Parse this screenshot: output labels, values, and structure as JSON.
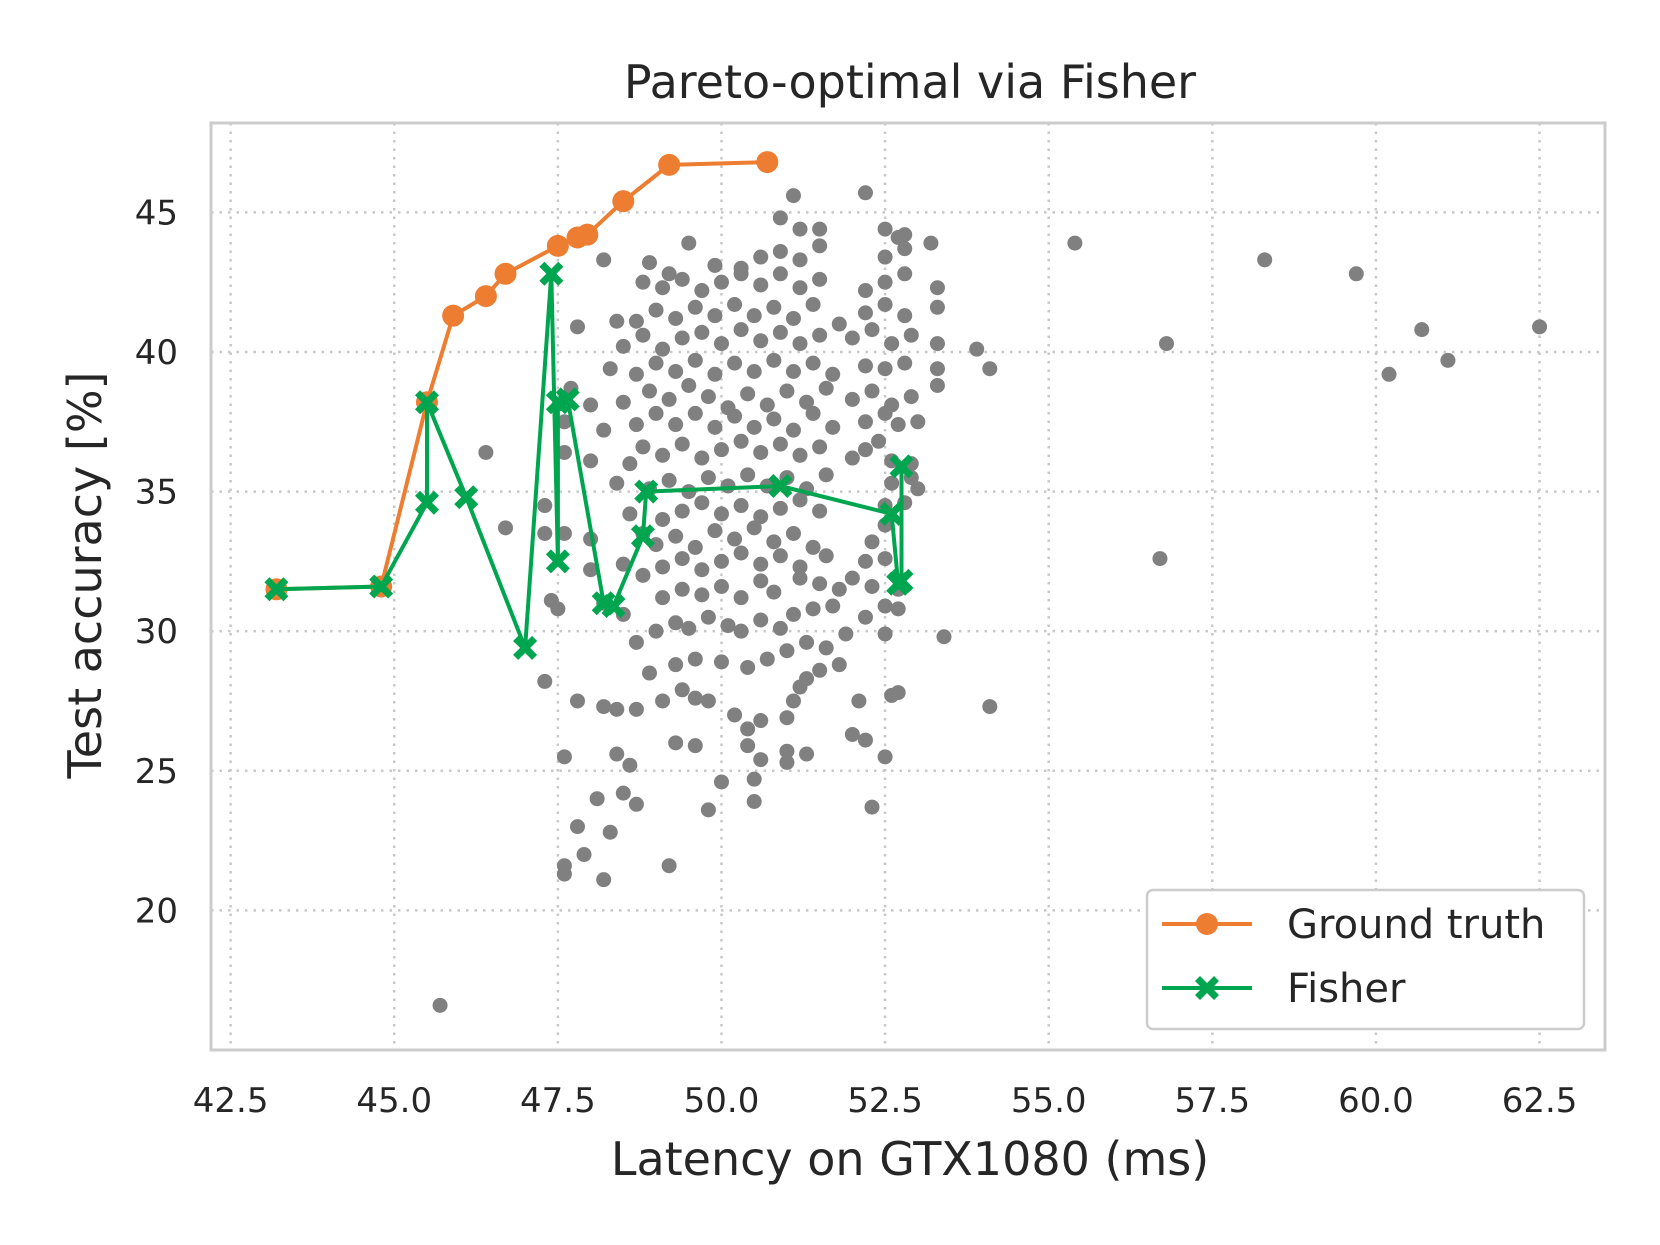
{
  "chart_data": {
    "type": "scatter",
    "title": "Pareto-optimal via Fisher",
    "xlabel": "Latency on GTX1080 (ms)",
    "ylabel": "Test accuracy [%]",
    "xlim": [
      42.2,
      63.5
    ],
    "ylim": [
      15.0,
      48.2
    ],
    "xticks": [
      42.5,
      45.0,
      47.5,
      50.0,
      52.5,
      55.0,
      57.5,
      60.0,
      62.5
    ],
    "xtick_labels": [
      "42.5",
      "45.0",
      "47.5",
      "50.0",
      "52.5",
      "55.0",
      "57.5",
      "60.0",
      "62.5"
    ],
    "yticks": [
      20,
      25,
      30,
      35,
      40,
      45
    ],
    "ytick_labels": [
      "20",
      "25",
      "30",
      "35",
      "40",
      "45"
    ],
    "grid": true,
    "legend_position": "lower-right",
    "colors": {
      "background_points": "#808080",
      "ground_truth": "#ED7D31",
      "fisher": "#00A64F",
      "grid": "#c8c8c8",
      "frame": "#cccccc"
    },
    "background_points": [
      [
        45.7,
        16.6
      ],
      [
        49.2,
        21.6
      ],
      [
        48.2,
        21.1
      ],
      [
        47.6,
        21.3
      ],
      [
        47.6,
        21.6
      ],
      [
        47.9,
        22.0
      ],
      [
        48.3,
        22.8
      ],
      [
        47.8,
        23.0
      ],
      [
        48.5,
        24.2
      ],
      [
        48.1,
        24.0
      ],
      [
        48.4,
        25.6
      ],
      [
        48.6,
        25.2
      ],
      [
        48.7,
        23.8
      ],
      [
        49.8,
        23.6
      ],
      [
        50.0,
        24.6
      ],
      [
        50.5,
        23.9
      ],
      [
        50.5,
        24.7
      ],
      [
        51.0,
        25.3
      ],
      [
        51.0,
        25.7
      ],
      [
        51.3,
        25.6
      ],
      [
        52.3,
        23.7
      ],
      [
        52.5,
        25.5
      ],
      [
        49.6,
        25.9
      ],
      [
        50.4,
        25.9
      ],
      [
        50.6,
        25.4
      ],
      [
        49.3,
        26.0
      ],
      [
        47.6,
        25.5
      ],
      [
        47.8,
        27.5
      ],
      [
        48.2,
        27.3
      ],
      [
        48.4,
        27.2
      ],
      [
        48.7,
        27.2
      ],
      [
        49.1,
        27.5
      ],
      [
        49.4,
        27.9
      ],
      [
        49.6,
        27.6
      ],
      [
        49.8,
        27.5
      ],
      [
        50.2,
        27.0
      ],
      [
        50.4,
        26.5
      ],
      [
        50.6,
        26.8
      ],
      [
        51.0,
        26.9
      ],
      [
        51.1,
        27.5
      ],
      [
        51.2,
        28.0
      ],
      [
        51.3,
        28.3
      ],
      [
        51.5,
        28.6
      ],
      [
        51.8,
        28.8
      ],
      [
        52.1,
        27.5
      ],
      [
        52.6,
        27.7
      ],
      [
        52.7,
        27.8
      ],
      [
        52.0,
        26.3
      ],
      [
        52.2,
        26.1
      ],
      [
        54.1,
        27.3
      ],
      [
        47.3,
        28.2
      ],
      [
        48.9,
        28.5
      ],
      [
        49.3,
        28.8
      ],
      [
        49.6,
        29.0
      ],
      [
        50.0,
        28.9
      ],
      [
        50.4,
        28.7
      ],
      [
        50.7,
        29.0
      ],
      [
        51.0,
        29.3
      ],
      [
        51.3,
        29.6
      ],
      [
        51.6,
        29.4
      ],
      [
        51.9,
        29.9
      ],
      [
        52.5,
        29.9
      ],
      [
        53.4,
        29.8
      ],
      [
        48.7,
        29.6
      ],
      [
        49.0,
        30.0
      ],
      [
        49.3,
        30.3
      ],
      [
        49.5,
        30.1
      ],
      [
        49.8,
        30.5
      ],
      [
        50.1,
        30.2
      ],
      [
        50.3,
        30.0
      ],
      [
        50.6,
        30.4
      ],
      [
        50.9,
        30.1
      ],
      [
        51.1,
        30.6
      ],
      [
        51.4,
        30.8
      ],
      [
        51.7,
        30.9
      ],
      [
        52.2,
        30.5
      ],
      [
        52.5,
        30.9
      ],
      [
        52.7,
        30.8
      ],
      [
        48.5,
        30.6
      ],
      [
        48.2,
        31.0
      ],
      [
        47.4,
        31.1
      ],
      [
        47.5,
        30.8
      ],
      [
        49.1,
        31.2
      ],
      [
        49.4,
        31.5
      ],
      [
        49.7,
        31.3
      ],
      [
        50.0,
        31.6
      ],
      [
        50.3,
        31.2
      ],
      [
        50.6,
        31.8
      ],
      [
        50.8,
        31.4
      ],
      [
        51.2,
        31.9
      ],
      [
        51.5,
        31.7
      ],
      [
        51.8,
        31.5
      ],
      [
        52.0,
        31.9
      ],
      [
        52.3,
        31.6
      ],
      [
        52.7,
        31.5
      ],
      [
        48.0,
        32.2
      ],
      [
        48.5,
        32.4
      ],
      [
        48.8,
        32.0
      ],
      [
        49.1,
        32.3
      ],
      [
        49.4,
        32.6
      ],
      [
        49.7,
        32.2
      ],
      [
        50.0,
        32.5
      ],
      [
        50.3,
        32.8
      ],
      [
        50.6,
        32.4
      ],
      [
        50.9,
        32.7
      ],
      [
        51.2,
        32.3
      ],
      [
        51.6,
        32.7
      ],
      [
        52.2,
        32.5
      ],
      [
        52.5,
        32.6
      ],
      [
        56.7,
        32.6
      ],
      [
        47.6,
        33.5
      ],
      [
        47.3,
        33.5
      ],
      [
        48.0,
        33.3
      ],
      [
        48.8,
        33.5
      ],
      [
        49.0,
        33.1
      ],
      [
        49.3,
        33.4
      ],
      [
        49.6,
        33.0
      ],
      [
        49.9,
        33.6
      ],
      [
        50.2,
        33.3
      ],
      [
        50.5,
        33.7
      ],
      [
        50.8,
        33.2
      ],
      [
        51.1,
        33.5
      ],
      [
        51.4,
        33.0
      ],
      [
        52.3,
        33.2
      ],
      [
        52.5,
        33.8
      ],
      [
        46.7,
        33.7
      ],
      [
        47.3,
        34.5
      ],
      [
        48.6,
        34.2
      ],
      [
        49.1,
        34.0
      ],
      [
        49.4,
        34.3
      ],
      [
        49.7,
        34.6
      ],
      [
        50.0,
        34.2
      ],
      [
        50.3,
        34.5
      ],
      [
        50.6,
        34.1
      ],
      [
        50.9,
        34.4
      ],
      [
        51.2,
        34.7
      ],
      [
        51.5,
        34.3
      ],
      [
        52.5,
        34.5
      ],
      [
        52.8,
        34.6
      ],
      [
        48.4,
        35.3
      ],
      [
        48.9,
        35.1
      ],
      [
        49.2,
        35.4
      ],
      [
        49.5,
        35.0
      ],
      [
        49.8,
        35.5
      ],
      [
        50.1,
        35.2
      ],
      [
        50.4,
        35.6
      ],
      [
        50.7,
        35.2
      ],
      [
        51.0,
        35.5
      ],
      [
        51.3,
        35.1
      ],
      [
        51.6,
        35.6
      ],
      [
        52.6,
        35.3
      ],
      [
        52.9,
        35.5
      ],
      [
        53.0,
        35.1
      ],
      [
        46.4,
        36.4
      ],
      [
        47.6,
        36.4
      ],
      [
        48.0,
        36.1
      ],
      [
        48.6,
        36.0
      ],
      [
        48.8,
        36.6
      ],
      [
        49.1,
        36.3
      ],
      [
        49.4,
        36.7
      ],
      [
        49.7,
        36.2
      ],
      [
        50.0,
        36.5
      ],
      [
        50.3,
        36.8
      ],
      [
        50.6,
        36.4
      ],
      [
        50.9,
        36.7
      ],
      [
        51.2,
        36.3
      ],
      [
        51.5,
        36.6
      ],
      [
        52.0,
        36.2
      ],
      [
        52.2,
        36.5
      ],
      [
        52.4,
        36.8
      ],
      [
        52.6,
        36.1
      ],
      [
        52.9,
        36.0
      ],
      [
        47.6,
        37.5
      ],
      [
        48.2,
        37.2
      ],
      [
        48.7,
        37.4
      ],
      [
        49.0,
        37.8
      ],
      [
        49.3,
        37.4
      ],
      [
        49.6,
        37.8
      ],
      [
        49.9,
        37.3
      ],
      [
        50.2,
        37.7
      ],
      [
        50.5,
        37.3
      ],
      [
        50.8,
        37.6
      ],
      [
        51.1,
        37.2
      ],
      [
        51.4,
        37.8
      ],
      [
        51.7,
        37.3
      ],
      [
        52.2,
        37.5
      ],
      [
        52.5,
        37.8
      ],
      [
        52.7,
        37.4
      ],
      [
        53.0,
        37.5
      ],
      [
        47.7,
        38.7
      ],
      [
        48.0,
        38.1
      ],
      [
        48.5,
        38.2
      ],
      [
        48.9,
        38.6
      ],
      [
        49.2,
        38.3
      ],
      [
        49.5,
        38.8
      ],
      [
        49.8,
        38.4
      ],
      [
        50.1,
        38.0
      ],
      [
        50.4,
        38.5
      ],
      [
        50.7,
        38.1
      ],
      [
        51.0,
        38.6
      ],
      [
        51.3,
        38.2
      ],
      [
        51.6,
        38.7
      ],
      [
        52.0,
        38.3
      ],
      [
        52.3,
        38.6
      ],
      [
        52.6,
        38.1
      ],
      [
        52.9,
        38.4
      ],
      [
        53.3,
        38.8
      ],
      [
        48.3,
        39.4
      ],
      [
        48.7,
        39.2
      ],
      [
        49.0,
        39.6
      ],
      [
        49.3,
        39.3
      ],
      [
        49.6,
        39.7
      ],
      [
        49.9,
        39.2
      ],
      [
        50.2,
        39.6
      ],
      [
        50.5,
        39.3
      ],
      [
        50.8,
        39.7
      ],
      [
        51.1,
        39.3
      ],
      [
        51.4,
        39.6
      ],
      [
        51.7,
        39.2
      ],
      [
        52.2,
        39.5
      ],
      [
        52.5,
        39.4
      ],
      [
        52.8,
        39.6
      ],
      [
        53.3,
        39.4
      ],
      [
        54.1,
        39.4
      ],
      [
        47.8,
        40.9
      ],
      [
        48.5,
        40.2
      ],
      [
        48.8,
        40.6
      ],
      [
        49.1,
        40.1
      ],
      [
        49.4,
        40.5
      ],
      [
        49.7,
        40.7
      ],
      [
        50.0,
        40.3
      ],
      [
        50.3,
        40.8
      ],
      [
        50.6,
        40.4
      ],
      [
        50.9,
        40.7
      ],
      [
        51.2,
        40.3
      ],
      [
        51.5,
        40.6
      ],
      [
        52.0,
        40.5
      ],
      [
        52.3,
        40.8
      ],
      [
        52.6,
        40.3
      ],
      [
        52.9,
        40.6
      ],
      [
        53.3,
        40.3
      ],
      [
        53.9,
        40.1
      ],
      [
        48.4,
        41.1
      ],
      [
        48.7,
        41.1
      ],
      [
        49.0,
        41.5
      ],
      [
        49.3,
        41.2
      ],
      [
        49.6,
        41.6
      ],
      [
        49.9,
        41.3
      ],
      [
        50.2,
        41.7
      ],
      [
        50.5,
        41.3
      ],
      [
        50.8,
        41.6
      ],
      [
        51.1,
        41.2
      ],
      [
        51.4,
        41.7
      ],
      [
        51.8,
        41.0
      ],
      [
        52.2,
        41.4
      ],
      [
        52.5,
        41.7
      ],
      [
        52.8,
        41.3
      ],
      [
        53.3,
        41.6
      ],
      [
        48.8,
        42.5
      ],
      [
        49.1,
        42.3
      ],
      [
        49.4,
        42.6
      ],
      [
        49.7,
        42.2
      ],
      [
        50.0,
        42.5
      ],
      [
        50.3,
        42.8
      ],
      [
        50.6,
        42.4
      ],
      [
        50.9,
        42.8
      ],
      [
        51.2,
        42.3
      ],
      [
        51.5,
        42.6
      ],
      [
        52.2,
        42.2
      ],
      [
        52.5,
        42.5
      ],
      [
        52.8,
        42.8
      ],
      [
        53.3,
        42.3
      ],
      [
        48.2,
        43.3
      ],
      [
        48.9,
        43.2
      ],
      [
        49.2,
        42.8
      ],
      [
        49.5,
        43.9
      ],
      [
        49.9,
        43.1
      ],
      [
        50.3,
        43.0
      ],
      [
        50.6,
        43.4
      ],
      [
        50.9,
        43.6
      ],
      [
        51.2,
        43.3
      ],
      [
        51.5,
        43.8
      ],
      [
        52.5,
        43.4
      ],
      [
        52.8,
        43.7
      ],
      [
        53.2,
        43.9
      ],
      [
        52.7,
        44.1
      ],
      [
        51.2,
        44.4
      ],
      [
        51.5,
        44.4
      ],
      [
        52.5,
        44.4
      ],
      [
        52.8,
        44.2
      ],
      [
        50.9,
        44.8
      ],
      [
        51.1,
        45.6
      ],
      [
        52.2,
        45.7
      ],
      [
        55.4,
        43.9
      ],
      [
        56.8,
        40.3
      ],
      [
        58.3,
        43.3
      ],
      [
        59.7,
        42.8
      ],
      [
        60.2,
        39.2
      ],
      [
        60.7,
        40.8
      ],
      [
        61.1,
        39.7
      ],
      [
        62.5,
        40.9
      ]
    ],
    "series": [
      {
        "name": "Ground truth",
        "marker": "circle",
        "x": [
          43.2,
          44.8,
          45.5,
          45.9,
          46.4,
          46.7,
          47.5,
          47.8,
          47.95,
          48.5,
          49.2,
          50.7
        ],
        "y": [
          31.5,
          31.6,
          38.2,
          41.3,
          42.0,
          42.8,
          43.8,
          44.1,
          44.2,
          45.4,
          46.7,
          46.8
        ]
      },
      {
        "name": "Fisher",
        "marker": "x-filled",
        "x": [
          43.2,
          44.8,
          45.5,
          45.5,
          46.1,
          47.0,
          47.4,
          47.5,
          47.5,
          47.65,
          48.2,
          48.35,
          48.8,
          48.85,
          50.9,
          52.6,
          52.7,
          52.75,
          52.75
        ],
        "y": [
          31.5,
          31.6,
          34.6,
          38.2,
          34.8,
          29.4,
          42.8,
          32.5,
          38.2,
          38.3,
          31.0,
          30.9,
          33.4,
          35.0,
          35.2,
          34.2,
          31.7,
          31.8,
          35.9
        ]
      }
    ]
  }
}
